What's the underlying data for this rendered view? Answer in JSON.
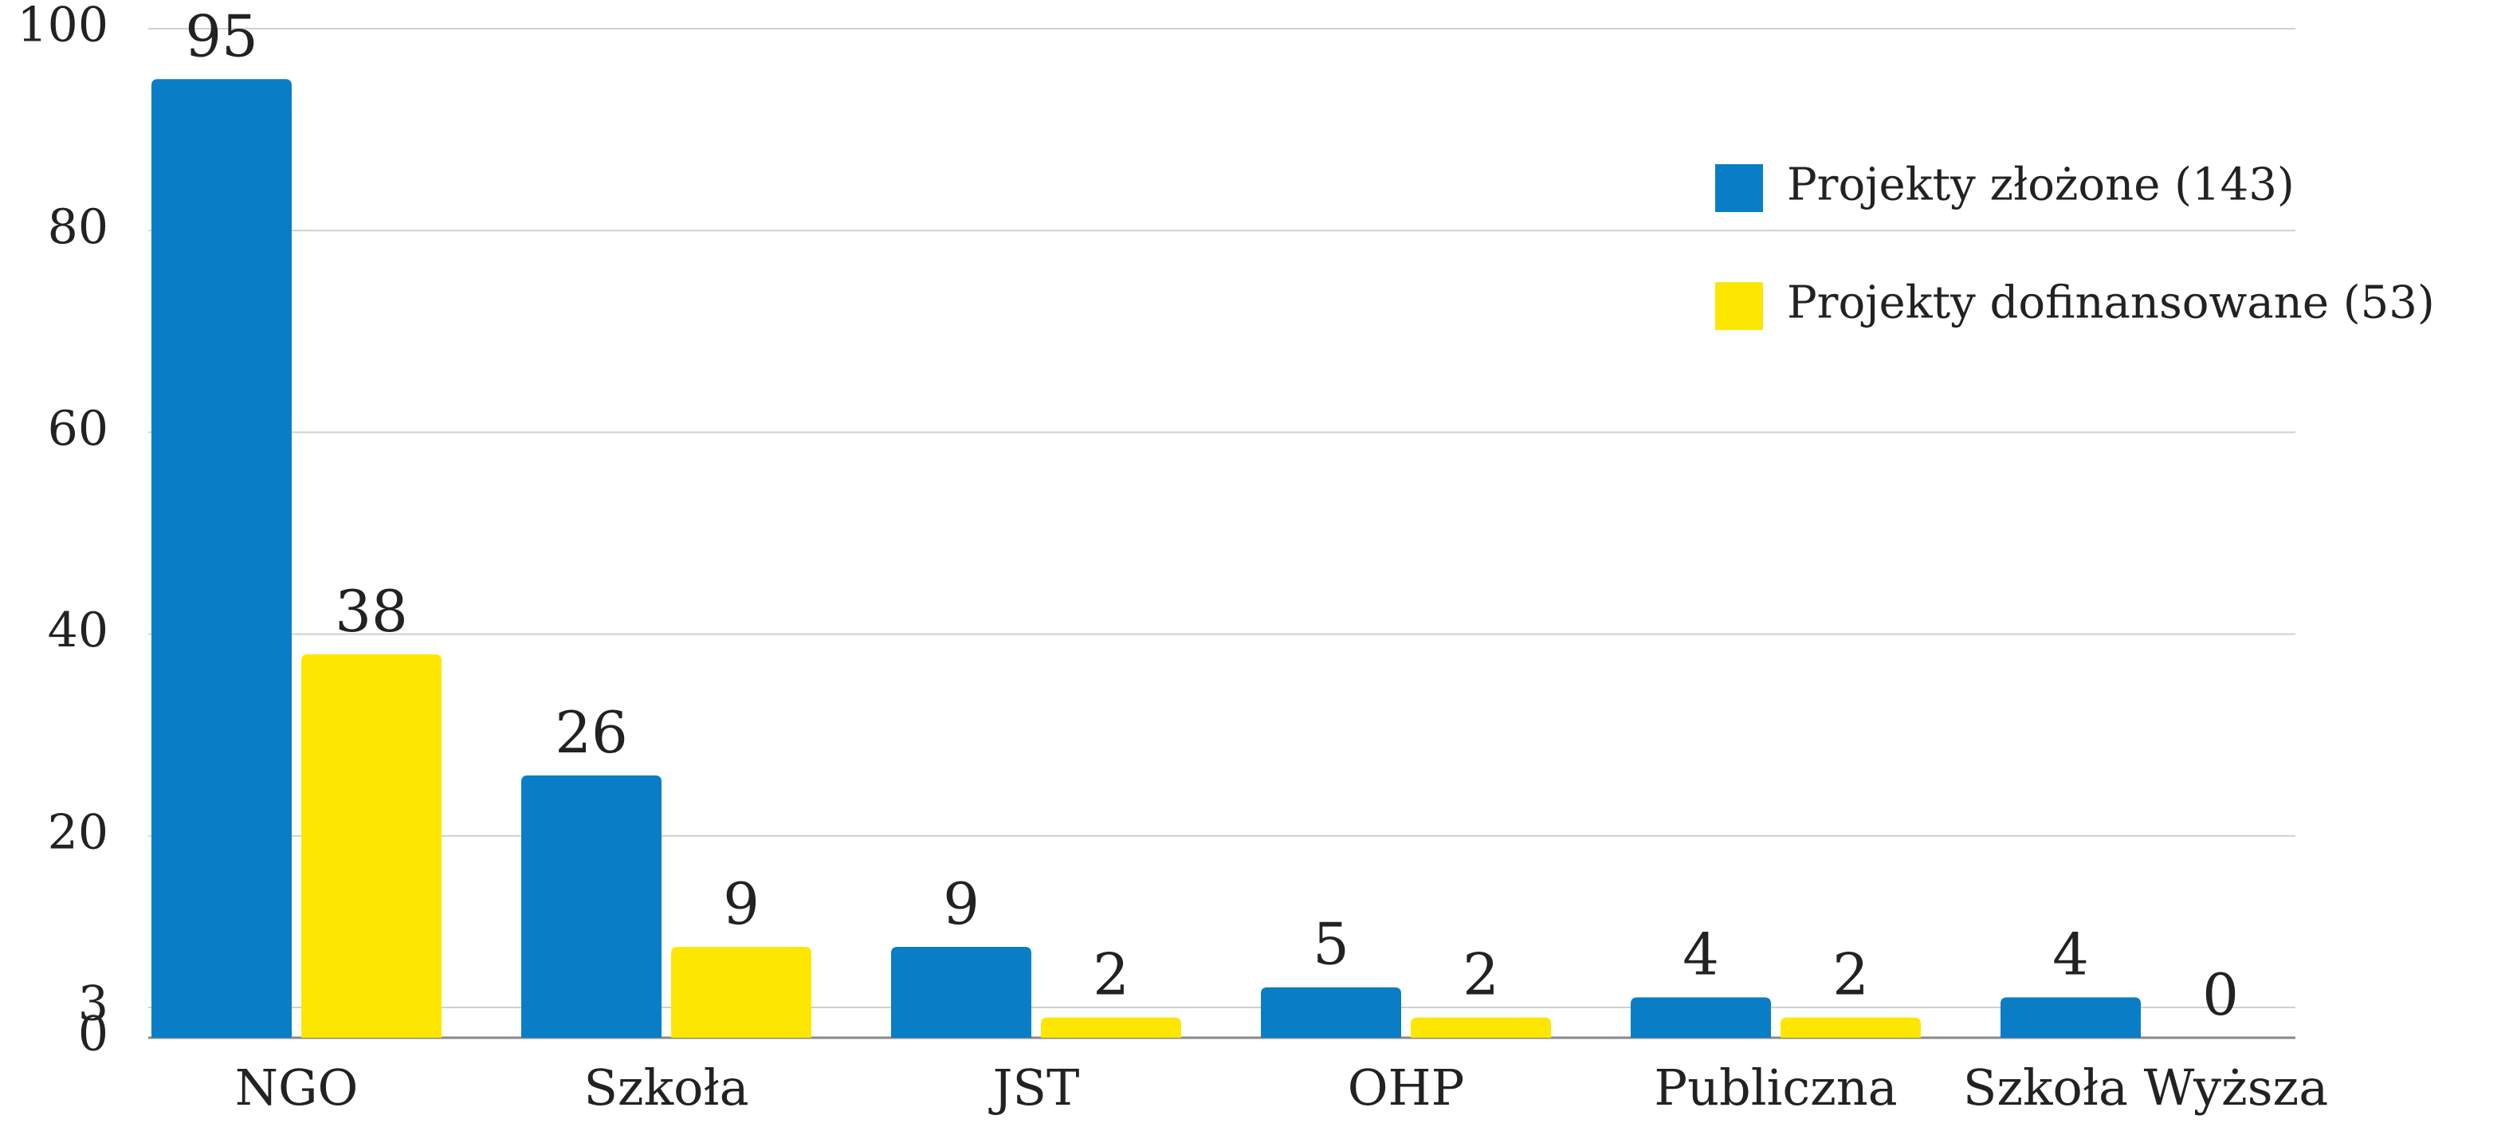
{
  "chart_data": {
    "type": "bar",
    "categories": [
      "NGO",
      "Szkoła",
      "JST",
      "OHP",
      "Publiczna",
      "Szkoła Wyższa"
    ],
    "series": [
      {
        "name": "Projekty złożone (143)",
        "color": "#0a7dc7",
        "values": [
          95,
          26,
          9,
          5,
          4,
          4
        ]
      },
      {
        "name": "Projekty dofinansowane (53)",
        "color": "#fde700",
        "values": [
          38,
          9,
          2,
          2,
          2,
          0
        ]
      }
    ],
    "ylim": [
      0,
      100
    ],
    "yticks": [
      0,
      3,
      20,
      40,
      60,
      80,
      100
    ],
    "grid": true,
    "legend": "upper right"
  }
}
